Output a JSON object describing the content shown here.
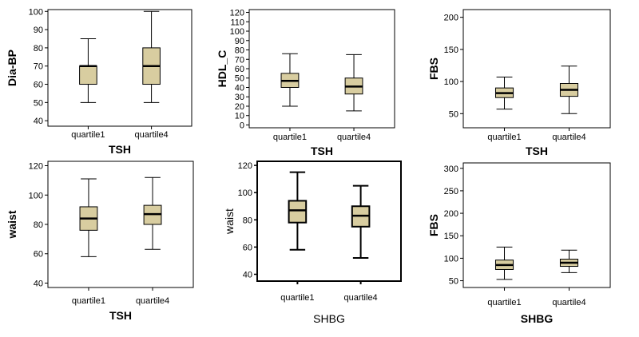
{
  "box_fill": "#d8cda0",
  "chart_data": [
    {
      "type": "box",
      "ylabel": "Dia-BP",
      "xlabel": "TSH",
      "ylim": [
        37,
        101
      ],
      "yticks": [
        40,
        50,
        60,
        70,
        80,
        90,
        100
      ],
      "categories": [
        "quartile1",
        "quartile4"
      ],
      "boxes": [
        {
          "min": 50,
          "q1": 60,
          "median": 70,
          "q3": 70,
          "max": 85
        },
        {
          "min": 50,
          "q1": 60,
          "median": 70,
          "q3": 80,
          "max": 100
        }
      ]
    },
    {
      "type": "box",
      "ylabel": "HDL_C",
      "xlabel": "TSH",
      "ylim": [
        -3,
        123
      ],
      "yticks": [
        0,
        10,
        20,
        30,
        40,
        50,
        60,
        70,
        80,
        90,
        100,
        110,
        120
      ],
      "categories": [
        "quartile1",
        "quartile4"
      ],
      "boxes": [
        {
          "min": 20,
          "q1": 40,
          "median": 47,
          "q3": 55,
          "max": 76
        },
        {
          "min": 15,
          "q1": 33,
          "median": 41,
          "q3": 50,
          "max": 75
        }
      ]
    },
    {
      "type": "box",
      "ylabel": "FBS",
      "xlabel": "TSH",
      "ylim": [
        28,
        212
      ],
      "yticks": [
        50,
        100,
        150,
        200
      ],
      "categories": [
        "quartile1",
        "quartile4"
      ],
      "boxes": [
        {
          "min": 57,
          "q1": 75,
          "median": 82,
          "q3": 90,
          "max": 107
        },
        {
          "min": 50,
          "q1": 77,
          "median": 87,
          "q3": 97,
          "max": 124
        }
      ]
    },
    {
      "type": "box",
      "ylabel": "waist",
      "xlabel": "TSH",
      "ylim": [
        37,
        123
      ],
      "yticks": [
        40,
        60,
        80,
        100,
        120
      ],
      "categories": [
        "quartile1",
        "quartile4"
      ],
      "boxes": [
        {
          "min": 58,
          "q1": 76,
          "median": 84,
          "q3": 92,
          "max": 111
        },
        {
          "min": 63,
          "q1": 80,
          "median": 87,
          "q3": 93,
          "max": 112
        }
      ]
    },
    {
      "type": "box",
      "ylabel": "waist",
      "xlabel": "SHBG",
      "ylim": [
        35,
        123
      ],
      "yticks": [
        40,
        60,
        80,
        100,
        120
      ],
      "categories": [
        "quartile1",
        "quartile4"
      ],
      "boxes": [
        {
          "min": 58,
          "q1": 78,
          "median": 87,
          "q3": 94,
          "max": 115
        },
        {
          "min": 52,
          "q1": 75,
          "median": 83,
          "q3": 90,
          "max": 105
        }
      ]
    },
    {
      "type": "box",
      "ylabel": "FBS",
      "xlabel": "SHBG",
      "ylim": [
        35,
        312
      ],
      "yticks": [
        50,
        100,
        150,
        200,
        250,
        300
      ],
      "categories": [
        "quartile1",
        "quartile4"
      ],
      "boxes": [
        {
          "min": 53,
          "q1": 75,
          "median": 85,
          "q3": 96,
          "max": 125
        },
        {
          "min": 68,
          "q1": 82,
          "median": 90,
          "q3": 98,
          "max": 118
        }
      ]
    }
  ]
}
